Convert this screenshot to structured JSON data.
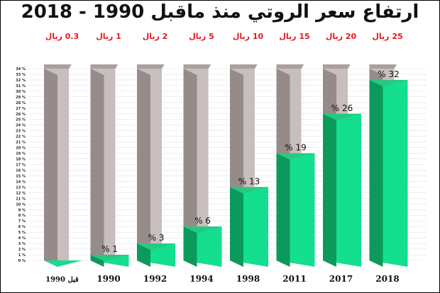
{
  "title": "ارتفاع سعر الروتي منذ ماقبل 1990 - 2018",
  "chart_data": {
    "type": "bar",
    "title": "ارتفاع سعر الروتي منذ ماقبل 1990 - 2018",
    "xlabel": "",
    "ylabel": "",
    "ylim": [
      0,
      34
    ],
    "y_tick_suffix": " %",
    "grid": true,
    "categories": [
      "قبل 1990",
      "1990",
      "1992",
      "1994",
      "1998",
      "2011",
      "2017",
      "2018"
    ],
    "values": [
      0,
      1,
      3,
      6,
      13,
      19,
      26,
      32
    ],
    "value_labels": [
      "",
      "% 1",
      "% 3",
      "% 6",
      "% 13",
      "% 19",
      "% 26",
      "% 32"
    ],
    "price_labels": [
      "0.3 ريال",
      "1 ريال",
      "2 ريال",
      "5 ريال",
      "10 ريال",
      "15 ريال",
      "20 ريال",
      "25 ريال"
    ],
    "colors": {
      "fill_front": "#14df8f",
      "fill_side": "#0b9a5b",
      "fill_top": "#27c982",
      "empty_front": "#c7bebd",
      "empty_side": "#958b89",
      "empty_top": "#a89f9e",
      "price_text": "#e8141c",
      "grid": "#bdbdbd"
    }
  }
}
